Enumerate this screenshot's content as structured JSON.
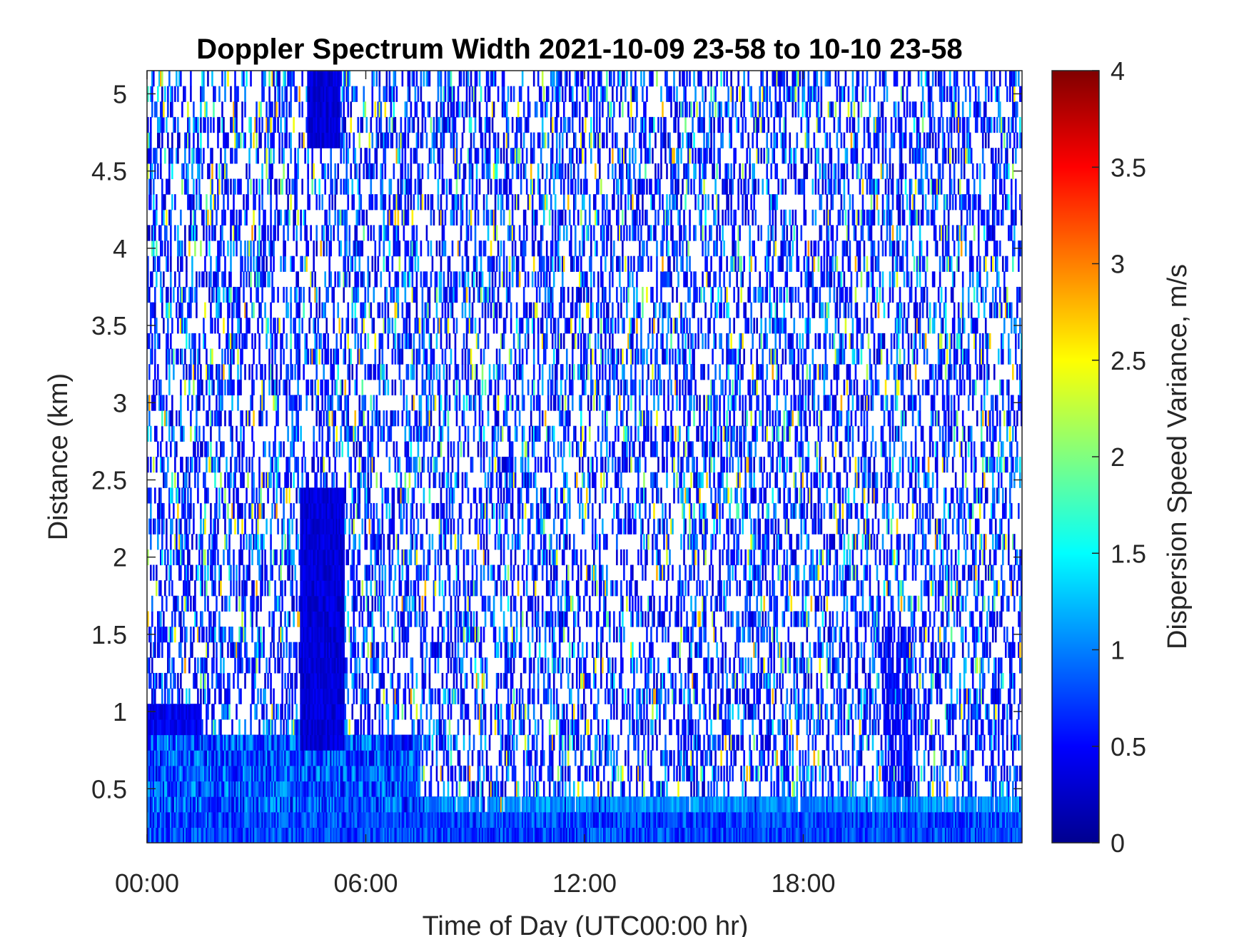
{
  "chart_data": {
    "type": "heatmap",
    "title": "Doppler Spectrum Width 2021-10-09 23-58 to 10-10 23-58",
    "xlabel": "Time of Day (UTC00:00 hr)",
    "ylabel": "Distance (km)",
    "colorbar_label": "Dispersion Speed Variance, m/s",
    "colormap": "jet",
    "xlim_hours": [
      0,
      24
    ],
    "ylim_km": [
      0.15,
      5.15
    ],
    "clim": [
      0,
      4
    ],
    "x_ticks": [
      {
        "value": 0,
        "label": "00:00"
      },
      {
        "value": 6,
        "label": "06:00"
      },
      {
        "value": 12,
        "label": "12:00"
      },
      {
        "value": 18,
        "label": "18:00"
      }
    ],
    "y_ticks": [
      {
        "value": 0.5,
        "label": "0.5"
      },
      {
        "value": 1,
        "label": "1"
      },
      {
        "value": 1.5,
        "label": "1.5"
      },
      {
        "value": 2,
        "label": "2"
      },
      {
        "value": 2.5,
        "label": "2.5"
      },
      {
        "value": 3,
        "label": "3"
      },
      {
        "value": 3.5,
        "label": "3.5"
      },
      {
        "value": 4,
        "label": "4"
      },
      {
        "value": 4.5,
        "label": "4.5"
      },
      {
        "value": 5,
        "label": "5"
      }
    ],
    "colorbar_ticks": [
      {
        "value": 0,
        "label": "0"
      },
      {
        "value": 0.5,
        "label": "0.5"
      },
      {
        "value": 1,
        "label": "1"
      },
      {
        "value": 1.5,
        "label": "1.5"
      },
      {
        "value": 2,
        "label": "2"
      },
      {
        "value": 2.5,
        "label": "2.5"
      },
      {
        "value": 3,
        "label": "3"
      },
      {
        "value": 3.5,
        "label": "3.5"
      },
      {
        "value": 4,
        "label": "4"
      }
    ],
    "regions": [
      {
        "name": "boundary-layer-near-surface",
        "x_hours": [
          0,
          24
        ],
        "y_km": [
          0.15,
          0.35
        ],
        "value_range": [
          0.4,
          1.1
        ]
      },
      {
        "name": "boundary-layer-morning",
        "x_hours": [
          0,
          7.5
        ],
        "y_km": [
          0.35,
          0.85
        ],
        "value_range": [
          0.3,
          1.3
        ]
      },
      {
        "name": "boundary-layer-day",
        "x_hours": [
          7.5,
          24
        ],
        "y_km": [
          0.35,
          0.45
        ],
        "value_range": [
          0.8,
          1.3
        ]
      },
      {
        "name": "residual-layer-night",
        "x_hours": [
          0,
          1.5
        ],
        "y_km": [
          0.85,
          1.05
        ],
        "value_range": [
          0.3,
          0.6
        ]
      },
      {
        "name": "dense-column-0430",
        "x_hours": [
          4.2,
          5.4
        ],
        "y_km": [
          0.75,
          2.45
        ],
        "value_range": [
          0.2,
          0.5
        ]
      },
      {
        "name": "upper-column-0430",
        "x_hours": [
          4.4,
          5.3
        ],
        "y_km": [
          4.65,
          5.15
        ],
        "value_range": [
          0.2,
          0.5
        ]
      },
      {
        "name": "evening-column-2030",
        "x_hours": [
          20.2,
          21.0
        ],
        "y_km": [
          0.45,
          1.6
        ],
        "value_range": [
          0.3,
          0.7
        ]
      },
      {
        "name": "sparse-noise",
        "x_hours": [
          0,
          24
        ],
        "y_km": [
          0.15,
          5.15
        ],
        "coverage": 0.4,
        "value_range": [
          0,
          1.8
        ]
      }
    ]
  }
}
